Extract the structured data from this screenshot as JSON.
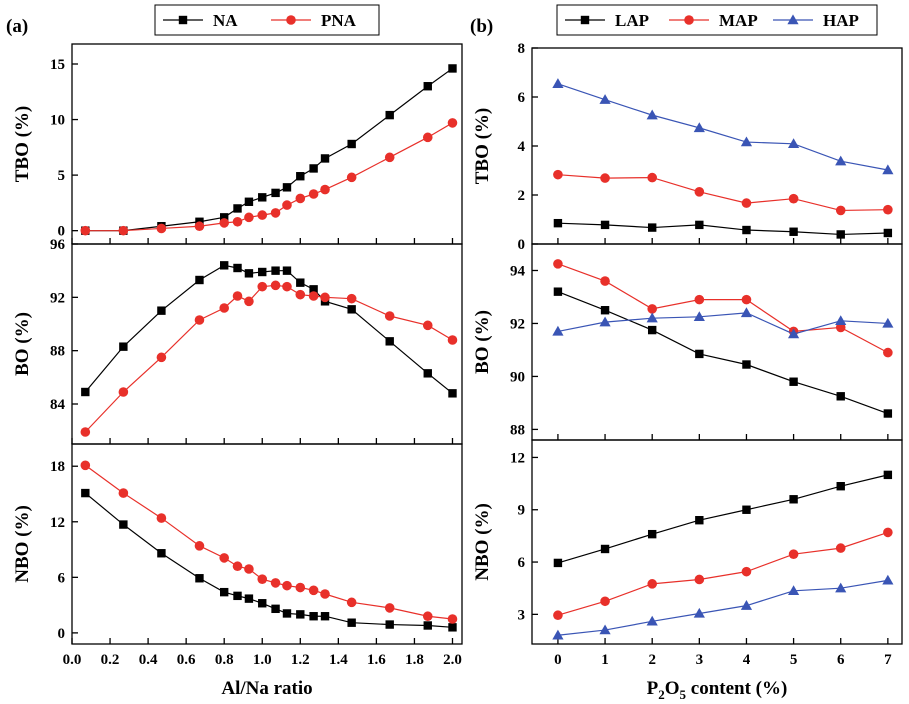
{
  "colors": {
    "NA": "#000000",
    "PNA": "#e8302a",
    "LAP": "#000000",
    "MAP": "#e8302a",
    "HAP": "#3a55b5"
  },
  "panel_labels": {
    "a": "(a)",
    "b": "(b)"
  },
  "chart_data": [
    {
      "type": "line",
      "panel": "a-top",
      "ylabel": "TBO (%)",
      "xlim": [
        0.0,
        2.05
      ],
      "ylim": [
        -1.2,
        16.8
      ],
      "yticks": [
        0,
        5,
        10,
        15
      ],
      "legend": "top",
      "series": [
        {
          "name": "NA",
          "marker": "square",
          "x": [
            0.07,
            0.27,
            0.47,
            0.67,
            0.8,
            0.87,
            0.93,
            1.0,
            1.07,
            1.13,
            1.2,
            1.27,
            1.33,
            1.47,
            1.67,
            1.87,
            2.0
          ],
          "y": [
            0.0,
            0.0,
            0.4,
            0.8,
            1.2,
            2.0,
            2.6,
            3.0,
            3.4,
            3.9,
            4.9,
            5.6,
            6.5,
            7.8,
            10.4,
            13.0,
            14.6
          ]
        },
        {
          "name": "PNA",
          "marker": "circle",
          "x": [
            0.07,
            0.27,
            0.47,
            0.67,
            0.8,
            0.87,
            0.93,
            1.0,
            1.07,
            1.13,
            1.2,
            1.27,
            1.33,
            1.47,
            1.67,
            1.87,
            2.0
          ],
          "y": [
            0.0,
            0.0,
            0.2,
            0.4,
            0.7,
            0.8,
            1.2,
            1.4,
            1.6,
            2.3,
            2.9,
            3.3,
            3.7,
            4.8,
            6.6,
            8.4,
            9.7
          ]
        }
      ]
    },
    {
      "type": "line",
      "panel": "a-middle",
      "ylabel": "BO (%)",
      "xlim": [
        0.0,
        2.05
      ],
      "ylim": [
        81.0,
        96.0
      ],
      "yticks": [
        84,
        88,
        92,
        96
      ],
      "series": [
        {
          "name": "NA",
          "marker": "square",
          "x": [
            0.07,
            0.27,
            0.47,
            0.67,
            0.8,
            0.87,
            0.93,
            1.0,
            1.07,
            1.13,
            1.2,
            1.27,
            1.33,
            1.47,
            1.67,
            1.87,
            2.0
          ],
          "y": [
            84.9,
            88.3,
            91.0,
            93.3,
            94.4,
            94.2,
            93.8,
            93.9,
            94.0,
            94.0,
            93.1,
            92.6,
            91.7,
            91.1,
            88.7,
            86.3,
            84.8
          ]
        },
        {
          "name": "PNA",
          "marker": "circle",
          "x": [
            0.07,
            0.27,
            0.47,
            0.67,
            0.8,
            0.87,
            0.93,
            1.0,
            1.07,
            1.13,
            1.2,
            1.27,
            1.33,
            1.47,
            1.67,
            1.87,
            2.0
          ],
          "y": [
            81.9,
            84.9,
            87.5,
            90.3,
            91.2,
            92.1,
            91.7,
            92.8,
            92.9,
            92.8,
            92.2,
            92.1,
            92.0,
            91.9,
            90.6,
            89.9,
            88.8
          ]
        }
      ]
    },
    {
      "type": "line",
      "panel": "a-bottom",
      "ylabel": "NBO (%)",
      "xlabel": "Al/Na ratio",
      "xlim": [
        0.0,
        2.05
      ],
      "ylim": [
        -1.2,
        20.4
      ],
      "yticks": [
        0,
        6,
        12,
        18
      ],
      "xticks": [
        "0.0",
        "0.2",
        "0.4",
        "0.6",
        "0.8",
        "1.0",
        "1.2",
        "1.4",
        "1.6",
        "1.8",
        "2.0"
      ],
      "series": [
        {
          "name": "NA",
          "marker": "square",
          "x": [
            0.07,
            0.27,
            0.47,
            0.67,
            0.8,
            0.87,
            0.93,
            1.0,
            1.07,
            1.13,
            1.2,
            1.27,
            1.33,
            1.47,
            1.67,
            1.87,
            2.0
          ],
          "y": [
            15.1,
            11.7,
            8.6,
            5.9,
            4.4,
            4.0,
            3.7,
            3.2,
            2.6,
            2.1,
            2.0,
            1.8,
            1.8,
            1.1,
            0.9,
            0.8,
            0.6
          ]
        },
        {
          "name": "PNA",
          "marker": "circle",
          "x": [
            0.07,
            0.27,
            0.47,
            0.67,
            0.8,
            0.87,
            0.93,
            1.0,
            1.07,
            1.13,
            1.2,
            1.27,
            1.33,
            1.47,
            1.67,
            1.87,
            2.0
          ],
          "y": [
            18.1,
            15.1,
            12.4,
            9.4,
            8.1,
            7.2,
            6.9,
            5.8,
            5.4,
            5.1,
            4.9,
            4.6,
            4.2,
            3.3,
            2.7,
            1.8,
            1.5
          ]
        }
      ]
    },
    {
      "type": "line",
      "panel": "b-top",
      "ylabel": "TBO (%)",
      "xlim": [
        -0.55,
        7.3
      ],
      "ylim": [
        0,
        8
      ],
      "yticks": [
        0,
        2,
        4,
        6,
        8
      ],
      "legend": "top",
      "series": [
        {
          "name": "LAP",
          "marker": "square",
          "x": [
            0,
            1,
            2,
            3,
            4,
            5,
            6,
            7
          ],
          "y": [
            0.85,
            0.78,
            0.67,
            0.78,
            0.57,
            0.5,
            0.39,
            0.45
          ]
        },
        {
          "name": "MAP",
          "marker": "circle",
          "x": [
            0,
            1,
            2,
            3,
            4,
            5,
            6,
            7
          ],
          "y": [
            2.83,
            2.69,
            2.71,
            2.13,
            1.67,
            1.85,
            1.37,
            1.4
          ]
        },
        {
          "name": "HAP",
          "marker": "triangle",
          "x": [
            0,
            1,
            2,
            3,
            4,
            5,
            6,
            7
          ],
          "y": [
            6.54,
            5.89,
            5.26,
            4.74,
            4.16,
            4.09,
            3.38,
            3.02
          ]
        }
      ]
    },
    {
      "type": "line",
      "panel": "b-middle",
      "ylabel": "BO (%)",
      "xlim": [
        -0.55,
        7.3
      ],
      "ylim": [
        87.6,
        95.0
      ],
      "yticks": [
        88,
        90,
        92,
        94
      ],
      "series": [
        {
          "name": "LAP",
          "marker": "square",
          "x": [
            0,
            1,
            2,
            3,
            4,
            5,
            6,
            7
          ],
          "y": [
            93.2,
            92.5,
            91.75,
            90.85,
            90.45,
            89.8,
            89.25,
            88.6
          ]
        },
        {
          "name": "MAP",
          "marker": "circle",
          "x": [
            0,
            1,
            2,
            3,
            4,
            5,
            6,
            7
          ],
          "y": [
            94.25,
            93.6,
            92.55,
            92.9,
            92.9,
            91.7,
            91.85,
            90.9
          ]
        },
        {
          "name": "HAP",
          "marker": "triangle",
          "x": [
            0,
            1,
            2,
            3,
            4,
            5,
            6,
            7
          ],
          "y": [
            91.7,
            92.05,
            92.2,
            92.25,
            92.4,
            91.6,
            92.1,
            92.0
          ]
        }
      ]
    },
    {
      "type": "line",
      "panel": "b-bottom",
      "ylabel": "NBO (%)",
      "xlabel": "P2O5 content (%)",
      "xlim": [
        -0.55,
        7.3
      ],
      "ylim": [
        1.3,
        13.0
      ],
      "yticks": [
        3,
        6,
        9,
        12
      ],
      "xticks": [
        "0",
        "1",
        "2",
        "3",
        "4",
        "5",
        "6",
        "7"
      ],
      "series": [
        {
          "name": "LAP",
          "marker": "square",
          "x": [
            0,
            1,
            2,
            3,
            4,
            5,
            6,
            7
          ],
          "y": [
            5.95,
            6.75,
            7.6,
            8.4,
            9.0,
            9.6,
            10.35,
            11.0
          ]
        },
        {
          "name": "MAP",
          "marker": "circle",
          "x": [
            0,
            1,
            2,
            3,
            4,
            5,
            6,
            7
          ],
          "y": [
            2.95,
            3.75,
            4.75,
            5.0,
            5.45,
            6.45,
            6.8,
            7.7
          ]
        },
        {
          "name": "HAP",
          "marker": "triangle",
          "x": [
            0,
            1,
            2,
            3,
            4,
            5,
            6,
            7
          ],
          "y": [
            1.8,
            2.1,
            2.6,
            3.05,
            3.5,
            4.35,
            4.5,
            4.95
          ]
        }
      ]
    }
  ]
}
